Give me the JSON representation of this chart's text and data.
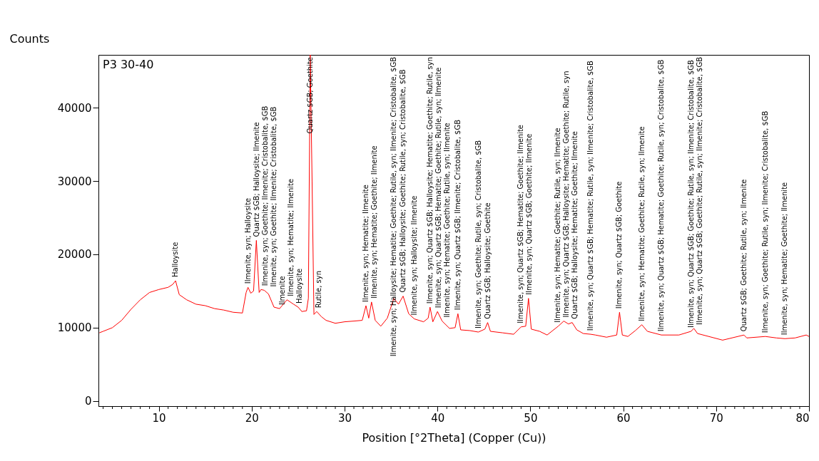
{
  "chart_data": {
    "type": "line",
    "xlabel": "Position [°2Theta] (Copper (Cu))",
    "ylabel": "Counts",
    "xlim": [
      3.5,
      80
    ],
    "ylim": [
      -700,
      47200
    ],
    "xticks": [
      {
        "value": 4,
        "label": null
      },
      {
        "value": 5,
        "label": null
      },
      {
        "value": 6,
        "label": null
      },
      {
        "value": 7,
        "label": null
      },
      {
        "value": 8,
        "label": null
      },
      {
        "value": 9,
        "label": null
      },
      10,
      {
        "value": 11,
        "label": null
      },
      {
        "value": 12,
        "label": null
      },
      {
        "value": 13,
        "label": null
      },
      {
        "value": 14,
        "label": null
      },
      {
        "value": 15,
        "label": null
      },
      {
        "value": 16,
        "label": null
      },
      {
        "value": 17,
        "label": null
      },
      {
        "value": 18,
        "label": null
      },
      {
        "value": 19,
        "label": null
      },
      20,
      {
        "value": 21,
        "label": null
      },
      {
        "value": 22,
        "label": null
      },
      {
        "value": 23,
        "label": null
      },
      {
        "value": 24,
        "label": null
      },
      {
        "value": 25,
        "label": null
      },
      {
        "value": 26,
        "label": null
      },
      {
        "value": 27,
        "label": null
      },
      {
        "value": 28,
        "label": null
      },
      {
        "value": 29,
        "label": null
      },
      30,
      {
        "value": 31,
        "label": null
      },
      {
        "value": 32,
        "label": null
      },
      {
        "value": 33,
        "label": null
      },
      {
        "value": 34,
        "label": null
      },
      {
        "value": 35,
        "label": null
      },
      {
        "value": 36,
        "label": null
      },
      {
        "value": 37,
        "label": null
      },
      {
        "value": 38,
        "label": null
      },
      {
        "value": 39,
        "label": null
      },
      40,
      {
        "value": 41,
        "label": null
      },
      {
        "value": 42,
        "label": null
      },
      {
        "value": 43,
        "label": null
      },
      {
        "value": 44,
        "label": null
      },
      {
        "value": 45,
        "label": null
      },
      {
        "value": 46,
        "label": null
      },
      {
        "value": 47,
        "label": null
      },
      {
        "value": 48,
        "label": null
      },
      {
        "value": 49,
        "label": null
      },
      50,
      {
        "value": 51,
        "label": null
      },
      {
        "value": 52,
        "label": null
      },
      {
        "value": 53,
        "label": null
      },
      {
        "value": 54,
        "label": null
      },
      {
        "value": 55,
        "label": null
      },
      {
        "value": 56,
        "label": null
      },
      {
        "value": 57,
        "label": null
      },
      {
        "value": 58,
        "label": null
      },
      {
        "value": 59,
        "label": null
      },
      60,
      {
        "value": 61,
        "label": null
      },
      {
        "value": 62,
        "label": null
      },
      {
        "value": 63,
        "label": null
      },
      {
        "value": 64,
        "label": null
      },
      {
        "value": 65,
        "label": null
      },
      {
        "value": 66,
        "label": null
      },
      {
        "value": 67,
        "label": null
      },
      {
        "value": 68,
        "label": null
      },
      {
        "value": 69,
        "label": null
      },
      70,
      {
        "value": 71,
        "label": null
      },
      {
        "value": 72,
        "label": null
      },
      {
        "value": 73,
        "label": null
      },
      {
        "value": 74,
        "label": null
      },
      {
        "value": 75,
        "label": null
      },
      {
        "value": 76,
        "label": null
      },
      {
        "value": 77,
        "label": null
      },
      {
        "value": 78,
        "label": null
      },
      {
        "value": 79,
        "label": null
      },
      80
    ],
    "yticks": [
      0,
      10000,
      20000,
      30000,
      40000
    ],
    "grid": false,
    "marker": "none",
    "line_style": "solid",
    "series": [
      {
        "color": "#ff0000",
        "x": [
          3.6,
          4,
          5,
          6,
          7,
          8,
          9,
          10,
          11,
          11.5,
          11.8,
          12.2,
          13,
          14,
          15,
          16,
          17,
          18,
          19,
          19.4,
          19.6,
          19.9,
          20.2,
          20.5,
          20.8,
          21.0,
          21.35,
          21.8,
          22.4,
          23.0,
          23.8,
          24.5,
          25.0,
          25.4,
          25.9,
          26.1,
          26.3,
          26.5,
          26.7,
          27.0,
          27.5,
          28,
          29,
          30,
          31,
          31.9,
          32.3,
          32.6,
          32.9,
          33.3,
          33.9,
          34.6,
          35.3,
          35.8,
          36.3,
          36.9,
          37.5,
          38.5,
          39.0,
          39.2,
          39.5,
          40.0,
          40.5,
          41.3,
          41.9,
          42.2,
          42.5,
          43.5,
          44.4,
          45.1,
          45.4,
          45.7,
          47,
          48.2,
          49.0,
          49.5,
          49.8,
          50.1,
          51,
          51.8,
          53.0,
          53.6,
          54.1,
          54.5,
          55.0,
          55.7,
          56.5,
          57,
          58.2,
          59.3,
          59.6,
          59.9,
          60.5,
          61.3,
          62.0,
          62.6,
          64.1,
          66,
          67.3,
          67.6,
          68,
          70.7,
          73.0,
          73.3,
          75.3,
          76.5,
          77.4,
          78.5,
          79.7,
          80
        ],
        "values": [
          9300,
          9500,
          10000,
          11000,
          12500,
          13800,
          14800,
          15200,
          15500,
          15900,
          16400,
          14500,
          13800,
          13200,
          13000,
          12600,
          12400,
          12100,
          12000,
          14800,
          15500,
          14700,
          15000,
          21900,
          14800,
          15200,
          15100,
          14600,
          12800,
          12600,
          13800,
          13200,
          12800,
          12200,
          12300,
          14000,
          47200,
          30000,
          11800,
          12200,
          11500,
          11000,
          10600,
          10800,
          10900,
          11000,
          13000,
          11300,
          13500,
          11000,
          10200,
          11300,
          14000,
          13200,
          14300,
          11900,
          11200,
          10800,
          11300,
          12800,
          10800,
          12200,
          10900,
          9900,
          10000,
          11900,
          9700,
          9600,
          9400,
          9800,
          10700,
          9500,
          9300,
          9100,
          10100,
          10200,
          14000,
          9800,
          9500,
          9000,
          10200,
          10900,
          10500,
          10700,
          9700,
          9200,
          9100,
          9000,
          8700,
          9000,
          12100,
          9000,
          8800,
          9600,
          10400,
          9500,
          9000,
          9000,
          9500,
          9900,
          9200,
          8300,
          9000,
          8600,
          8800,
          8600,
          8500,
          8600,
          9000,
          8800
        ]
      }
    ],
    "annotations": [
      "P3 30-40",
      {
        "text": "Halloysite",
        "x": 11.8,
        "y": 16400
      },
      {
        "text": "Ilmenite, syn; Halloysite",
        "x": 19.6,
        "y": 15500
      },
      {
        "text": "Quartz $GB; Halloysite; Ilmenite",
        "x": 20.5,
        "y": 21900
      },
      {
        "text": "Ilmenite, syn; Goethite; Ilmenite; Cristobalite, $GB",
        "x": 21.0,
        "y": 15200
      },
      {
        "text": "Ilmenite, syn; Goethite; Ilmenite; Cristobalite, $GB",
        "x": 21.35,
        "y": 15100
      },
      {
        "text": "Ilmenite",
        "x": 23.0,
        "y": 12600
      },
      {
        "text": "Ilmenite, syn; Hematite; Ilmenite",
        "x": 23.8,
        "y": 13800
      },
      {
        "text": "Halloysite",
        "x": 25.0,
        "y": 12800
      },
      {
        "text": "Quartz $GB; Goethite",
        "x": 26.3,
        "y": 47200
      },
      {
        "text": "Rutile, syn",
        "x": 27.0,
        "y": 12200
      },
      {
        "text": "Ilmenite, syn; Hematite; Ilmenite",
        "x": 32.3,
        "y": 13000
      },
      {
        "text": "Ilmenite, syn; Hematite; Goethite; Ilmenite",
        "x": 32.9,
        "y": 13500
      },
      {
        "text": "Ilmenite, syn; Halloysite; Hematite; Goethite; Rutile, syn; Ilmenite; Cristobalite, $GB",
        "x": 35.3,
        "y": 14000
      },
      {
        "text": "Quartz $GB; Halloysite; Goethite; Rutile, syn; Cristobalite, $GB",
        "x": 36.3,
        "y": 14300
      },
      {
        "text": "Ilmenite, syn; Halloysite; Ilmenite",
        "x": 37.5,
        "y": 11200
      },
      {
        "text": "Ilmenite, syn; Quartz $GB; Halloysite; Hematite; Goethite; Rutile, syn",
        "x": 39.2,
        "y": 12800
      },
      {
        "text": "Ilmenite, syn; Quartz $GB; Hematite; Goethite; Rutile, syn; Ilmenite",
        "x": 40.0,
        "y": 12200
      },
      {
        "text": "Ilmenite, syn; Hematite; Goethite; Rutile, syn; Ilmenite",
        "x": 40.5,
        "y": 10900
      },
      {
        "text": "Ilmenite, syn; Quartz $GB; Ilmenite; Cristobalite, $GB",
        "x": 42.2,
        "y": 11900
      },
      {
        "text": "Ilmenite, syn; Goethite; Rutile, syn; Cristobalite, $GB",
        "x": 44.4,
        "y": 9400
      },
      {
        "text": "Quartz $GB; Halloysite; Goethite",
        "x": 45.4,
        "y": 10700
      },
      {
        "text": "Ilmenite, syn; Quartz $GB; Hematite; Goethite; Ilmenite",
        "x": 49.0,
        "y": 10100
      },
      {
        "text": "Ilmenite, syn; Quartz $GB; Goethite; Ilmenite",
        "x": 49.8,
        "y": 14000
      },
      {
        "text": "Ilmenite, syn; Hematite; Goethite; Rutile, syn; Ilmenite",
        "x": 53.0,
        "y": 10200
      },
      {
        "text": "Ilmenite, syn; Quartz $GB; Halloysite; Hematite; Goethite; Rutile, syn",
        "x": 53.6,
        "y": 10900
      },
      {
        "text": "Quartz $GB; Halloysite; Hematite; Goethite; Ilmenite",
        "x": 54.5,
        "y": 10700
      },
      {
        "text": "Ilmenite, syn; Quartz $GB; Hematite; Rutile, syn; Ilmenite; Cristobalite, $GB",
        "x": 56.5,
        "y": 9100
      },
      {
        "text": "Ilmenite, syn; Quartz $GB; Goethite",
        "x": 59.6,
        "y": 12100
      },
      {
        "text": "Ilmenite, syn; Hematite; Goethite; Rutile, syn; Ilmenite",
        "x": 62.0,
        "y": 10400
      },
      {
        "text": "Ilmenite, syn; Quartz $GB; Hematite; Goethite; Rutile, syn; Cristobalite, $GB",
        "x": 64.1,
        "y": 9000
      },
      {
        "text": "Ilmenite, syn; Quartz $GB; Goethite; Rutile, syn; Ilmenite; Cristobalite, $GB",
        "x": 67.3,
        "y": 9500
      },
      {
        "text": "Ilmenite, syn; Quartz $GB; Goethite; Rutile, syn; Ilmenite; Cristobalite, $GB",
        "x": 67.6,
        "y": 9900
      },
      {
        "text": "Quartz $GB; Goethite; Rutile, syn; Ilmenite",
        "x": 73.0,
        "y": 9000
      },
      {
        "text": "Ilmenite, syn; Goethite; Rutile, syn; Ilmenite; Cristobalite, $GB",
        "x": 75.3,
        "y": 8800
      },
      {
        "text": "Ilmenite, syn; Hematite; Goethite; Ilmenite",
        "x": 77.4,
        "y": 8500
      }
    ]
  }
}
